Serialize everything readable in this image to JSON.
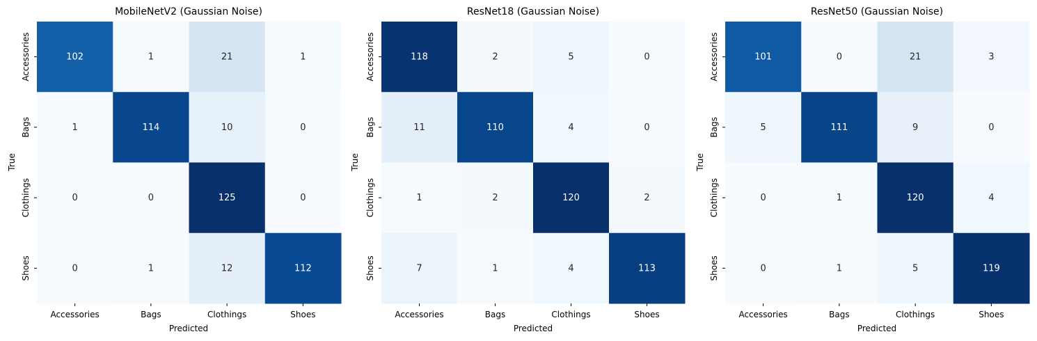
{
  "chart_data": [
    {
      "type": "heatmap",
      "title": "MobileNetV2 (Gaussian Noise)",
      "xlabel": "Predicted",
      "ylabel": "True",
      "x_categories": [
        "Accessories",
        "Bags",
        "Clothings",
        "Shoes"
      ],
      "y_categories": [
        "Accessories",
        "Bags",
        "Clothings",
        "Shoes"
      ],
      "values": [
        [
          102,
          1,
          21,
          1
        ],
        [
          1,
          114,
          10,
          0
        ],
        [
          0,
          0,
          125,
          0
        ],
        [
          0,
          1,
          12,
          112
        ]
      ],
      "colormap": "Blues",
      "colorbar": false
    },
    {
      "type": "heatmap",
      "title": "ResNet18 (Gaussian Noise)",
      "xlabel": "Predicted",
      "ylabel": "True",
      "x_categories": [
        "Accessories",
        "Bags",
        "Clothings",
        "Shoes"
      ],
      "y_categories": [
        "Accessories",
        "Bags",
        "Clothings",
        "Shoes"
      ],
      "values": [
        [
          118,
          2,
          5,
          0
        ],
        [
          11,
          110,
          4,
          0
        ],
        [
          1,
          2,
          120,
          2
        ],
        [
          7,
          1,
          4,
          113
        ]
      ],
      "colormap": "Blues",
      "colorbar": false
    },
    {
      "type": "heatmap",
      "title": "ResNet50 (Gaussian Noise)",
      "xlabel": "Predicted",
      "ylabel": "True",
      "x_categories": [
        "Accessories",
        "Bags",
        "Clothings",
        "Shoes"
      ],
      "y_categories": [
        "Accessories",
        "Bags",
        "Clothings",
        "Shoes"
      ],
      "values": [
        [
          101,
          0,
          21,
          3
        ],
        [
          5,
          111,
          9,
          0
        ],
        [
          0,
          1,
          120,
          4
        ],
        [
          0,
          1,
          5,
          119
        ]
      ],
      "colormap": "Blues",
      "colorbar": false
    }
  ]
}
